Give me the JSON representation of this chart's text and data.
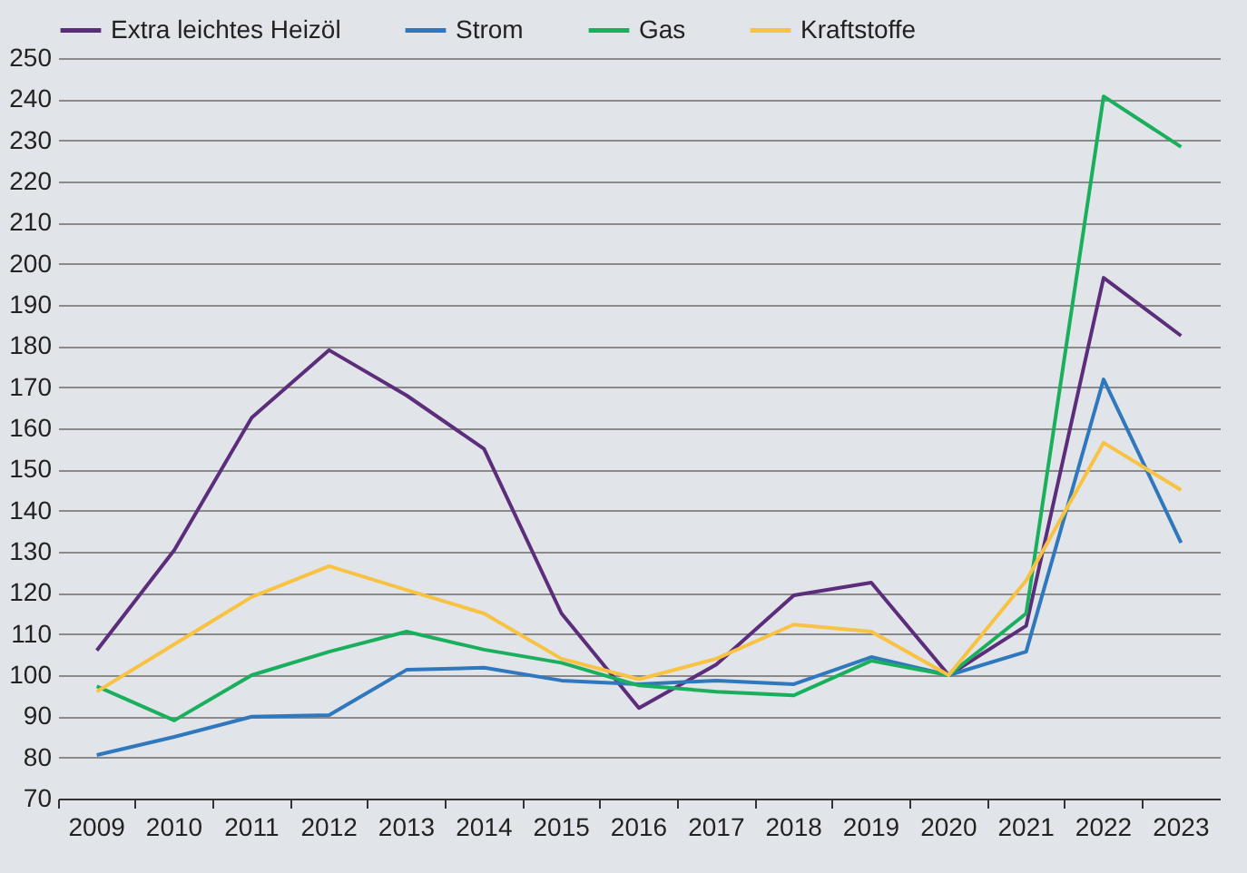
{
  "chart_data": {
    "type": "line",
    "categories": [
      "2009",
      "2010",
      "2011",
      "2012",
      "2013",
      "2014",
      "2015",
      "2016",
      "2017",
      "2018",
      "2019",
      "2020",
      "2021",
      "2022",
      "2023"
    ],
    "ylim": [
      70,
      250
    ],
    "yticks": [
      70,
      80,
      90,
      100,
      110,
      120,
      130,
      140,
      150,
      160,
      170,
      180,
      190,
      200,
      210,
      220,
      230,
      240,
      250
    ],
    "grid": "y",
    "legend": "top",
    "marker": "none",
    "line_style": "solid",
    "series": [
      {
        "name": "Extra leichtes Heizöl",
        "color": "#5c2d7a",
        "values": [
          106,
          130.4,
          162.6,
          179,
          168,
          155,
          115,
          92,
          102.6,
          119.4,
          122.5,
          100,
          112,
          196.6,
          182.5
        ]
      },
      {
        "name": "Strom",
        "color": "#2f78bd",
        "values": [
          80.6,
          85,
          89.9,
          90.3,
          101.3,
          101.8,
          98.7,
          97.8,
          98.7,
          97.8,
          104.4,
          100,
          105.7,
          171.9,
          132.2
        ]
      },
      {
        "name": "Gas",
        "color": "#1aaf5d",
        "values": [
          97.3,
          89,
          100,
          105.7,
          110.6,
          106.2,
          103,
          97.5,
          96,
          95.1,
          103.5,
          100,
          115,
          240.7,
          228.4
        ]
      },
      {
        "name": "Kraftstoffe",
        "color": "#f8c242",
        "values": [
          96,
          107.5,
          119,
          126.5,
          120.7,
          115,
          104,
          99,
          104,
          112.3,
          110.6,
          100,
          123,
          156.5,
          145
        ]
      }
    ]
  }
}
